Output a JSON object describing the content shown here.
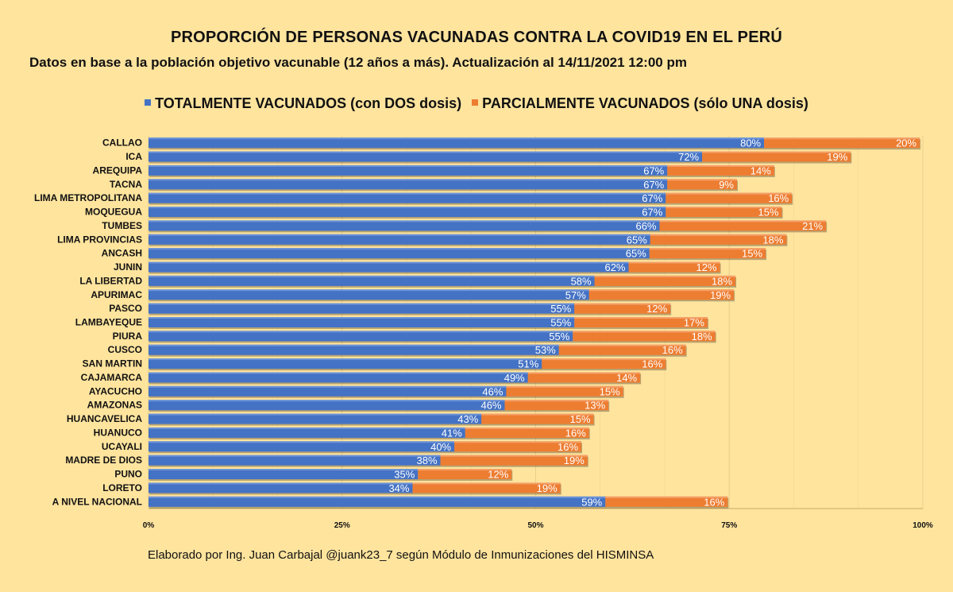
{
  "title": "PROPORCIÓN DE PERSONAS VACUNADAS CONTRA LA COVID19 EN EL PERÚ",
  "subtitle": "Datos en base a la población objetivo vacunable (12 años a más). Actualización al 14/11/2021 12:00 pm",
  "footer": "Elaborado por Ing. Juan Carbajal @juank23_7 según Módulo de Inmunizaciones del HISMINSA",
  "colors": {
    "background": "#ffe49e",
    "full": "#4472c4",
    "partial": "#ed7d31",
    "grid": "#e9cf8a"
  },
  "chart_data": {
    "type": "bar",
    "orientation": "horizontal",
    "stacked": true,
    "title": "PROPORCIÓN DE PERSONAS VACUNADAS CONTRA LA COVID19 EN EL PERÚ",
    "xlim": [
      0,
      100
    ],
    "x_ticks": [
      "0%",
      "25%",
      "50%",
      "75%",
      "100%"
    ],
    "legend_position": "top",
    "categories": [
      "CALLAO",
      "ICA",
      "AREQUIPA",
      "TACNA",
      "LIMA METROPOLITANA",
      "MOQUEGUA",
      "TUMBES",
      "LIMA PROVINCIAS",
      "ANCASH",
      "JUNIN",
      "LA LIBERTAD",
      "APURIMAC",
      "PASCO",
      "LAMBAYEQUE",
      "PIURA",
      "CUSCO",
      "SAN MARTIN",
      "CAJAMARCA",
      "AYACUCHO",
      "AMAZONAS",
      "HUANCAVELICA",
      "HUANUCO",
      "UCAYALI",
      "MADRE DE DIOS",
      "PUNO",
      "LORETO",
      "A NIVEL NACIONAL"
    ],
    "series": [
      {
        "name": "TOTALMENTE VACUNADOS (con DOS dosis)",
        "values": [
          79.5,
          71.5,
          67,
          67,
          66.8,
          66.8,
          66,
          64.8,
          64.7,
          62,
          57.6,
          56.9,
          55,
          55,
          54.8,
          53,
          50.8,
          49,
          46.2,
          46,
          43,
          40.9,
          39.5,
          37.7,
          34.8,
          34.1,
          59
        ]
      },
      {
        "name": "PARCIALMENTE VACUNADOS (sólo UNA dosis)",
        "values": [
          20.1,
          19.2,
          13.8,
          9,
          16.3,
          15,
          21.5,
          17.6,
          15,
          11.8,
          18.2,
          18.7,
          12.4,
          17.2,
          18.4,
          16.4,
          16,
          14.5,
          15.1,
          13.4,
          14.5,
          16,
          16.4,
          19,
          12.1,
          19.1,
          15.8
        ]
      }
    ],
    "data_labels": [
      [
        "80%",
        "72%",
        "67%",
        "67%",
        "67%",
        "67%",
        "66%",
        "65%",
        "65%",
        "62%",
        "58%",
        "57%",
        "55%",
        "55%",
        "55%",
        "53%",
        "51%",
        "49%",
        "46%",
        "46%",
        "43%",
        "41%",
        "40%",
        "38%",
        "35%",
        "34%",
        "59%"
      ],
      [
        "20%",
        "19%",
        "14%",
        "9%",
        "16%",
        "15%",
        "21%",
        "18%",
        "15%",
        "12%",
        "18%",
        "19%",
        "12%",
        "17%",
        "18%",
        "16%",
        "16%",
        "14%",
        "15%",
        "13%",
        "15%",
        "16%",
        "16%",
        "19%",
        "12%",
        "19%",
        "16%"
      ]
    ]
  }
}
